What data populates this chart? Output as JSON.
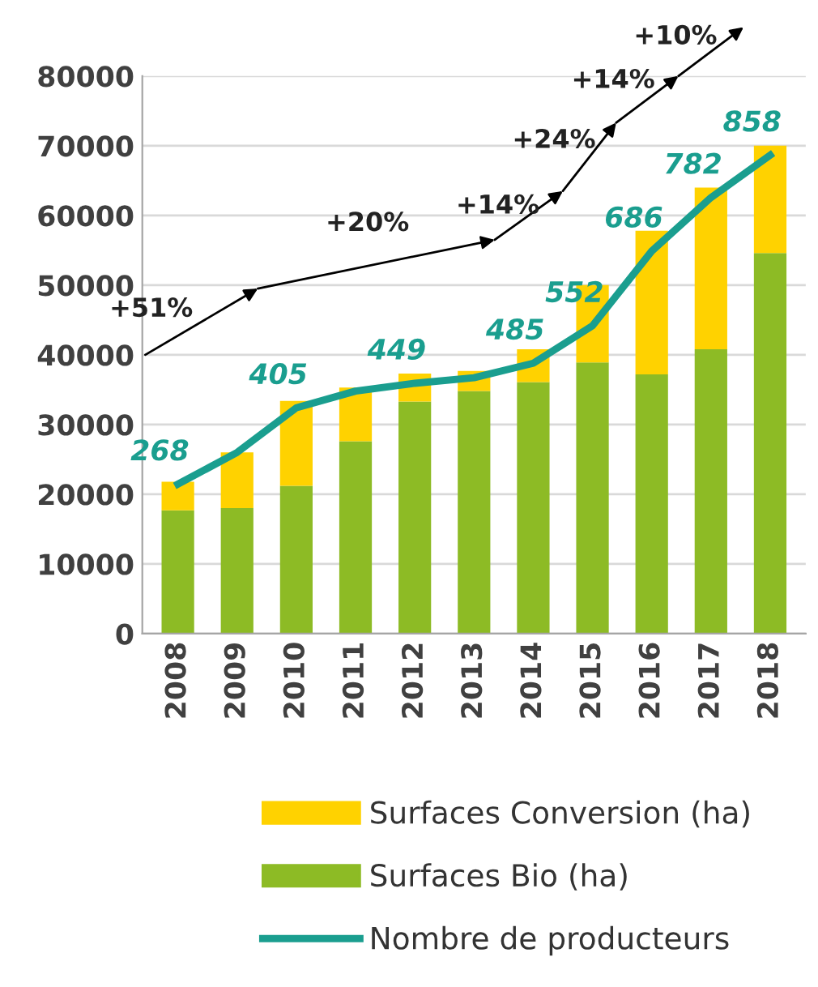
{
  "chart_data": {
    "type": "bar",
    "stacked": true,
    "categories": [
      "2008",
      "2009",
      "2010",
      "2011",
      "2012",
      "2013",
      "2014",
      "2015",
      "2016",
      "2017",
      "2018"
    ],
    "series": [
      {
        "name": "Surfaces Bio (ha)",
        "color": "#8dbb25",
        "values": [
          17700,
          18000,
          21200,
          27600,
          33300,
          34800,
          36100,
          38900,
          37200,
          40800,
          54600
        ]
      },
      {
        "name": "Surfaces Conversion (ha)",
        "color": "#ffd200",
        "values": [
          4100,
          8000,
          12200,
          7700,
          4000,
          2900,
          4700,
          11100,
          20600,
          23200,
          15400
        ]
      },
      {
        "name": "Nombre de producteurs",
        "type": "line",
        "axis": "y2",
        "color": "#1a9e8f",
        "values": [
          268,
          325,
          405,
          435,
          449,
          459,
          485,
          552,
          686,
          782,
          858
        ],
        "value_labels": [
          "268",
          null,
          "405",
          null,
          "449",
          null,
          "485",
          "552",
          "686",
          "782",
          "858"
        ]
      }
    ],
    "ylim": [
      0,
      80000
    ],
    "yticks": [
      0,
      10000,
      20000,
      30000,
      40000,
      50000,
      60000,
      70000,
      80000
    ],
    "y2lim": [
      0,
      1000
    ],
    "grid": "y",
    "legend": "bottom",
    "marker": "none",
    "line_style": "solid",
    "annotations": [
      "+51%",
      "+20%",
      "+14%",
      "+24%",
      "+14%",
      "+10%"
    ]
  }
}
